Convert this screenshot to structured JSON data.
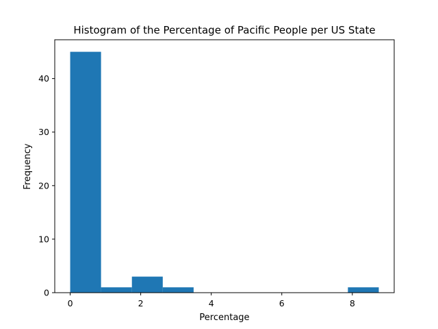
{
  "chart_data": {
    "type": "bar",
    "title": "Histogram of the Percentage of Pacific People per US State",
    "xlabel": "Percentage",
    "ylabel": "Frequency",
    "bin_edges": [
      0.0,
      0.875,
      1.75,
      2.625,
      3.5,
      4.375,
      5.25,
      6.125,
      7.0,
      7.875,
      8.75
    ],
    "values": [
      45,
      1,
      3,
      1,
      0,
      0,
      0,
      0,
      0,
      1
    ],
    "xlim": [
      -0.4375,
      9.1875
    ],
    "ylim": [
      0,
      47.25
    ],
    "xticks": [
      0,
      2,
      4,
      6,
      8
    ],
    "yticks": [
      0,
      10,
      20,
      30,
      40
    ],
    "bar_color": "#1f77b4",
    "grid": false,
    "legend": "none"
  }
}
